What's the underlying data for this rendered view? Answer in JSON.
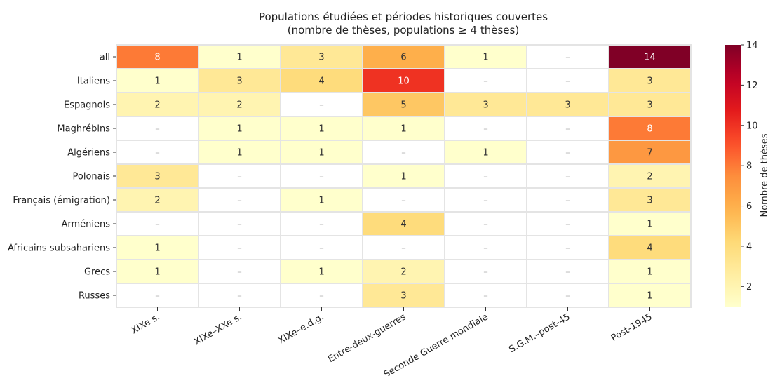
{
  "chart_data": {
    "type": "heatmap",
    "title": "Populations étudiées et périodes historiques couvertes",
    "subtitle": "(nombre de thèses, populations ≥ 4 thèses)",
    "rows": [
      "all",
      "Italiens",
      "Espagnols",
      "Maghrébins",
      "Algériens",
      "Polonais",
      "Français (émigration)",
      "Arméniens",
      "Africains subsahariens",
      "Grecs",
      "Russes"
    ],
    "columns": [
      "XIXe s.",
      "XIXe–XXe s.",
      "XIXe–e.d.g.",
      "Entre-deux-guerres",
      "Seconde Guerre mondiale",
      "S.G.M.–post-45",
      "Post-1945"
    ],
    "values": [
      [
        8,
        1,
        3,
        6,
        1,
        0,
        14
      ],
      [
        1,
        3,
        4,
        10,
        0,
        0,
        3
      ],
      [
        2,
        2,
        0,
        5,
        3,
        3,
        3
      ],
      [
        0,
        1,
        1,
        1,
        0,
        0,
        8
      ],
      [
        0,
        1,
        1,
        0,
        1,
        0,
        7
      ],
      [
        3,
        0,
        0,
        1,
        0,
        0,
        2
      ],
      [
        2,
        0,
        1,
        0,
        0,
        0,
        3
      ],
      [
        0,
        0,
        0,
        4,
        0,
        0,
        1
      ],
      [
        1,
        0,
        0,
        0,
        0,
        0,
        4
      ],
      [
        1,
        0,
        1,
        2,
        0,
        0,
        1
      ],
      [
        0,
        0,
        0,
        3,
        0,
        0,
        1
      ]
    ],
    "zero_label": "–",
    "colormap": "YlOrRd",
    "value_range": [
      1,
      14
    ],
    "colorbar": {
      "label": "Nombre de thèses",
      "ticks": [
        "2",
        "4",
        "6",
        "8",
        "10",
        "12",
        "14"
      ],
      "position": "right"
    },
    "colors": {
      "empty_cell": "#ffffff",
      "grid_line": "#e4e4e4",
      "label_dark": "#333333",
      "label_light": "#ffffff",
      "zero_text": "#b8b8b8"
    }
  }
}
